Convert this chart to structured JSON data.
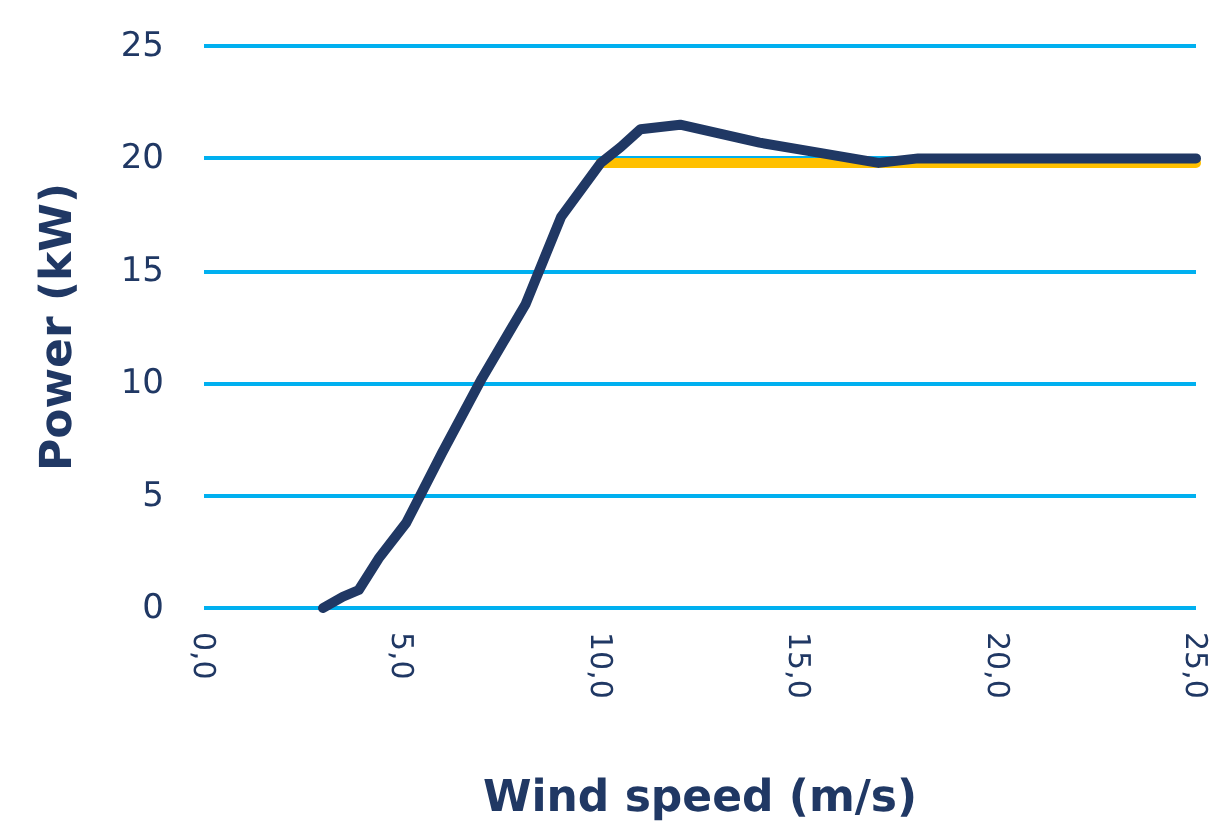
{
  "chart_data": {
    "type": "line",
    "xlabel": "Wind speed (m/s)",
    "ylabel": "Power (kW)",
    "xlim": [
      0,
      25
    ],
    "xticks": [
      {
        "value": 0,
        "label": "0,0"
      },
      {
        "value": 5,
        "label": "5,0"
      },
      {
        "value": 10,
        "label": "10,0"
      },
      {
        "value": 15,
        "label": "15,0"
      },
      {
        "value": 20,
        "label": "20,0"
      },
      {
        "value": 25,
        "label": "25,0"
      }
    ],
    "ylim": [
      0,
      25
    ],
    "yticks": [
      0,
      5,
      10,
      15,
      20,
      25
    ],
    "grid": "y",
    "marker": "none",
    "line_style": "solid",
    "series": [
      {
        "color": "#ffc000",
        "x": [
          10,
          25
        ],
        "values": [
          19.8,
          19.8
        ]
      },
      {
        "color": "#203864",
        "x": [
          3,
          3.5,
          3.9,
          4.4,
          5.1,
          6,
          7,
          8.1,
          9,
          9.5,
          10,
          10.5,
          11,
          11.5,
          12,
          13,
          14,
          15,
          16,
          17,
          17.5,
          18,
          19,
          20,
          22,
          25
        ],
        "values": [
          0,
          0.5,
          0.8,
          2.2,
          3.8,
          6.9,
          10.2,
          13.5,
          17.4,
          18.6,
          19.8,
          20.5,
          21.3,
          21.4,
          21.5,
          21.1,
          20.7,
          20.4,
          20.1,
          19.8,
          19.9,
          20,
          20,
          20,
          20,
          20
        ]
      }
    ]
  }
}
